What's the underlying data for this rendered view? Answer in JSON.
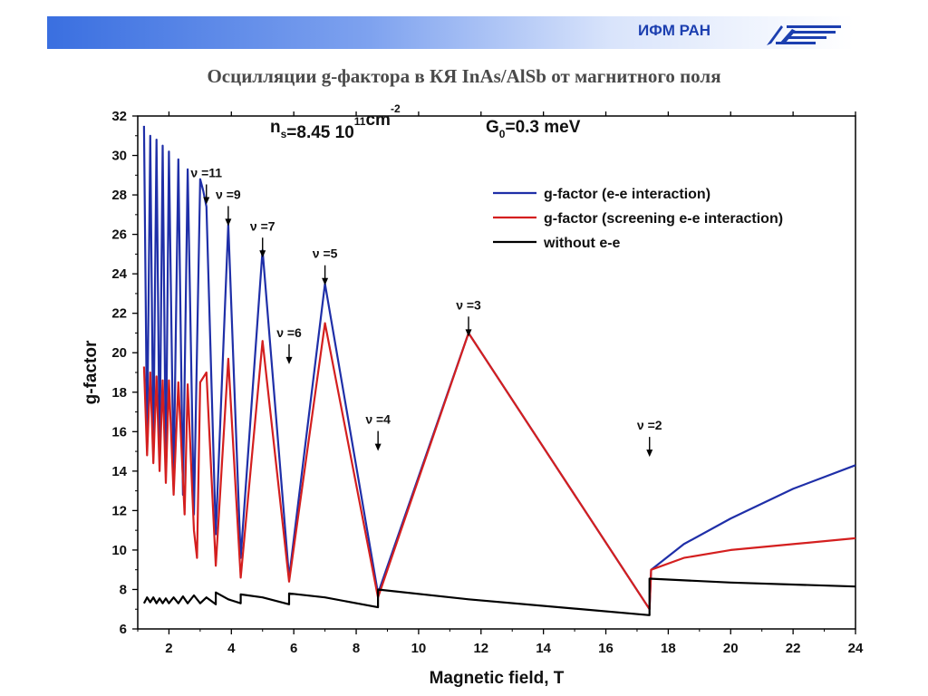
{
  "header": {
    "org_label": "ИФМ РАН",
    "title": "Осцилляции g-фактора в КЯ InAs/AlSb от магнитного поля"
  },
  "logo": {
    "icon": "institute-logo-icon",
    "color": "#1c3fb0"
  },
  "chart_data": {
    "type": "line",
    "xlabel": "Magnetic field, T",
    "ylabel": "g-factor",
    "xlim": [
      1,
      24
    ],
    "ylim": [
      6,
      32
    ],
    "xticks": [
      2,
      4,
      6,
      8,
      10,
      12,
      14,
      16,
      18,
      20,
      22,
      24
    ],
    "yticks": [
      6,
      8,
      10,
      12,
      14,
      16,
      18,
      20,
      22,
      24,
      26,
      28,
      30,
      32
    ],
    "grid": false,
    "legend_position": "top-right",
    "annotations": {
      "density_label": "n",
      "density_sub": "s",
      "density_value": "=8.45 10",
      "density_exp": "11",
      "density_unit": "cm",
      "density_unit_exp": "-2",
      "gamma_label": "G",
      "gamma_sub": "0",
      "gamma_value": "=0.3 meV"
    },
    "filling_factors": [
      {
        "label": "ν =11",
        "x": 3.2,
        "y": 28.9
      },
      {
        "label": "ν =9",
        "x": 3.9,
        "y": 27.8
      },
      {
        "label": "ν =7",
        "x": 5.0,
        "y": 26.2
      },
      {
        "label": "ν =5",
        "x": 7.0,
        "y": 24.8
      },
      {
        "label": "ν =6",
        "x": 5.85,
        "y": 20.8
      },
      {
        "label": "ν =4",
        "x": 8.7,
        "y": 16.4
      },
      {
        "label": "ν =3",
        "x": 11.6,
        "y": 22.2
      },
      {
        "label": "ν =2",
        "x": 17.4,
        "y": 16.1
      }
    ],
    "series": [
      {
        "name": "g-factor (e-e interaction)",
        "color": "#1f2fa8",
        "points": [
          [
            1.2,
            31.5
          ],
          [
            1.3,
            15.5
          ],
          [
            1.4,
            31.0
          ],
          [
            1.5,
            15.0
          ],
          [
            1.6,
            30.8
          ],
          [
            1.7,
            14.6
          ],
          [
            1.8,
            30.5
          ],
          [
            1.9,
            14.2
          ],
          [
            2.0,
            30.2
          ],
          [
            2.15,
            13.5
          ],
          [
            2.3,
            29.8
          ],
          [
            2.45,
            12.8
          ],
          [
            2.6,
            29.3
          ],
          [
            2.8,
            11.8
          ],
          [
            3.0,
            28.8
          ],
          [
            3.1,
            28.2
          ],
          [
            3.2,
            27.4
          ],
          [
            3.5,
            10.8
          ],
          [
            3.9,
            26.5
          ],
          [
            4.3,
            9.6
          ],
          [
            5.0,
            25.2
          ],
          [
            5.85,
            8.6
          ],
          [
            7.0,
            23.5
          ],
          [
            8.7,
            7.8
          ],
          [
            11.6,
            21.0
          ],
          [
            17.4,
            7.0
          ],
          [
            17.45,
            9.0
          ],
          [
            18.5,
            10.3
          ],
          [
            20,
            11.6
          ],
          [
            22,
            13.1
          ],
          [
            24,
            14.3
          ]
        ]
      },
      {
        "name": "g-factor (screening e-e interaction)",
        "color": "#d41f1f",
        "points": [
          [
            1.2,
            19.3
          ],
          [
            1.3,
            14.8
          ],
          [
            1.4,
            19.0
          ],
          [
            1.5,
            14.4
          ],
          [
            1.6,
            18.8
          ],
          [
            1.7,
            14.0
          ],
          [
            1.8,
            18.6
          ],
          [
            1.9,
            13.4
          ],
          [
            2.0,
            18.6
          ],
          [
            2.15,
            12.8
          ],
          [
            2.3,
            18.5
          ],
          [
            2.5,
            11.8
          ],
          [
            2.6,
            18.4
          ],
          [
            2.8,
            11.0
          ],
          [
            2.9,
            9.6
          ],
          [
            3.0,
            18.5
          ],
          [
            3.2,
            19.0
          ],
          [
            3.5,
            9.2
          ],
          [
            3.9,
            19.7
          ],
          [
            4.3,
            8.6
          ],
          [
            5.0,
            20.6
          ],
          [
            5.85,
            8.4
          ],
          [
            7.0,
            21.5
          ],
          [
            8.7,
            7.6
          ],
          [
            11.6,
            21.0
          ],
          [
            17.4,
            7.0
          ],
          [
            17.45,
            9.0
          ],
          [
            18.5,
            9.6
          ],
          [
            20,
            10.0
          ],
          [
            22,
            10.3
          ],
          [
            24,
            10.6
          ]
        ]
      },
      {
        "name": "without e-e",
        "color": "#000000",
        "points": [
          [
            1.2,
            7.3
          ],
          [
            1.3,
            7.6
          ],
          [
            1.4,
            7.35
          ],
          [
            1.5,
            7.6
          ],
          [
            1.6,
            7.3
          ],
          [
            1.7,
            7.55
          ],
          [
            1.8,
            7.3
          ],
          [
            1.9,
            7.55
          ],
          [
            2.0,
            7.3
          ],
          [
            2.15,
            7.6
          ],
          [
            2.3,
            7.3
          ],
          [
            2.45,
            7.65
          ],
          [
            2.6,
            7.3
          ],
          [
            2.8,
            7.7
          ],
          [
            3.0,
            7.3
          ],
          [
            3.2,
            7.6
          ],
          [
            3.5,
            7.25
          ],
          [
            3.5,
            7.85
          ],
          [
            3.9,
            7.5
          ],
          [
            4.3,
            7.3
          ],
          [
            4.3,
            7.75
          ],
          [
            5.0,
            7.6
          ],
          [
            5.85,
            7.25
          ],
          [
            5.85,
            7.8
          ],
          [
            7.0,
            7.6
          ],
          [
            8.7,
            7.1
          ],
          [
            8.7,
            8.0
          ],
          [
            11.6,
            7.5
          ],
          [
            17.4,
            6.7
          ],
          [
            17.4,
            8.55
          ],
          [
            20,
            8.35
          ],
          [
            24,
            8.15
          ]
        ]
      }
    ]
  }
}
